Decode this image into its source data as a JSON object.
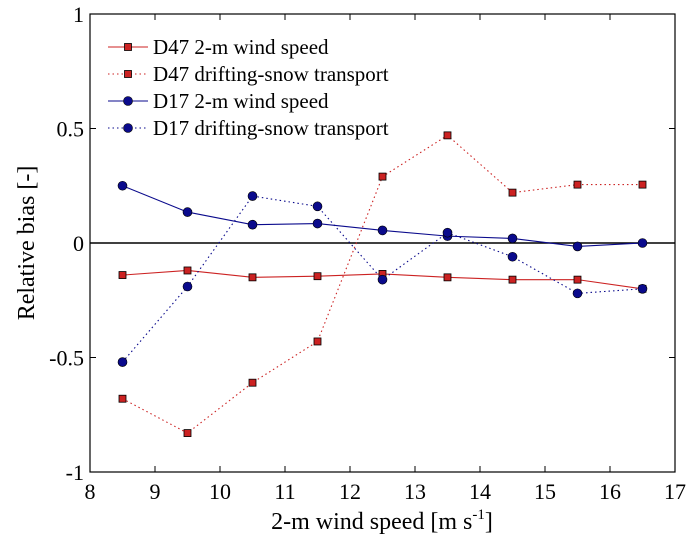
{
  "chart_data": {
    "type": "line",
    "xlabel": "2-m wind speed [m s",
    "xlabel_sup": "-1",
    "xlabel_suffix": "]",
    "ylabel": "Relative bias [-]",
    "xlim": [
      8,
      17
    ],
    "ylim": [
      -1,
      1
    ],
    "xticks": [
      8,
      9,
      10,
      11,
      12,
      13,
      14,
      15,
      16,
      17
    ],
    "yticks": [
      -1,
      -0.5,
      0,
      0.5,
      1
    ],
    "ytick_labels": [
      "-1",
      "-0.5",
      "0",
      "0.5",
      "1"
    ],
    "zero_line": true,
    "grid": false,
    "legend_position": "top-left",
    "x": [
      8.5,
      9.5,
      10.5,
      11.5,
      12.5,
      13.5,
      14.5,
      15.5,
      16.5
    ],
    "series": [
      {
        "name": "D47 2-m wind speed",
        "color": "#cc2222",
        "line_style": "solid",
        "marker": "square",
        "values": [
          -0.14,
          -0.12,
          -0.15,
          -0.145,
          -0.135,
          -0.15,
          -0.16,
          -0.16,
          -0.2
        ]
      },
      {
        "name": "D47 drifting-snow transport",
        "color": "#cc2222",
        "line_style": "dotted",
        "marker": "square",
        "values": [
          -0.68,
          -0.83,
          -0.61,
          -0.43,
          0.29,
          0.47,
          0.22,
          0.255,
          0.255
        ]
      },
      {
        "name": "D17 2-m wind speed",
        "color": "#0a0a8c",
        "line_style": "solid",
        "marker": "circle",
        "values": [
          0.25,
          0.135,
          0.08,
          0.085,
          0.055,
          0.03,
          0.02,
          -0.015,
          0.0
        ]
      },
      {
        "name": "D17 drifting-snow transport",
        "color": "#0a0a8c",
        "line_style": "dotted",
        "marker": "circle",
        "values": [
          -0.52,
          -0.19,
          0.205,
          0.16,
          -0.16,
          0.045,
          -0.06,
          -0.22,
          -0.2
        ]
      }
    ]
  }
}
